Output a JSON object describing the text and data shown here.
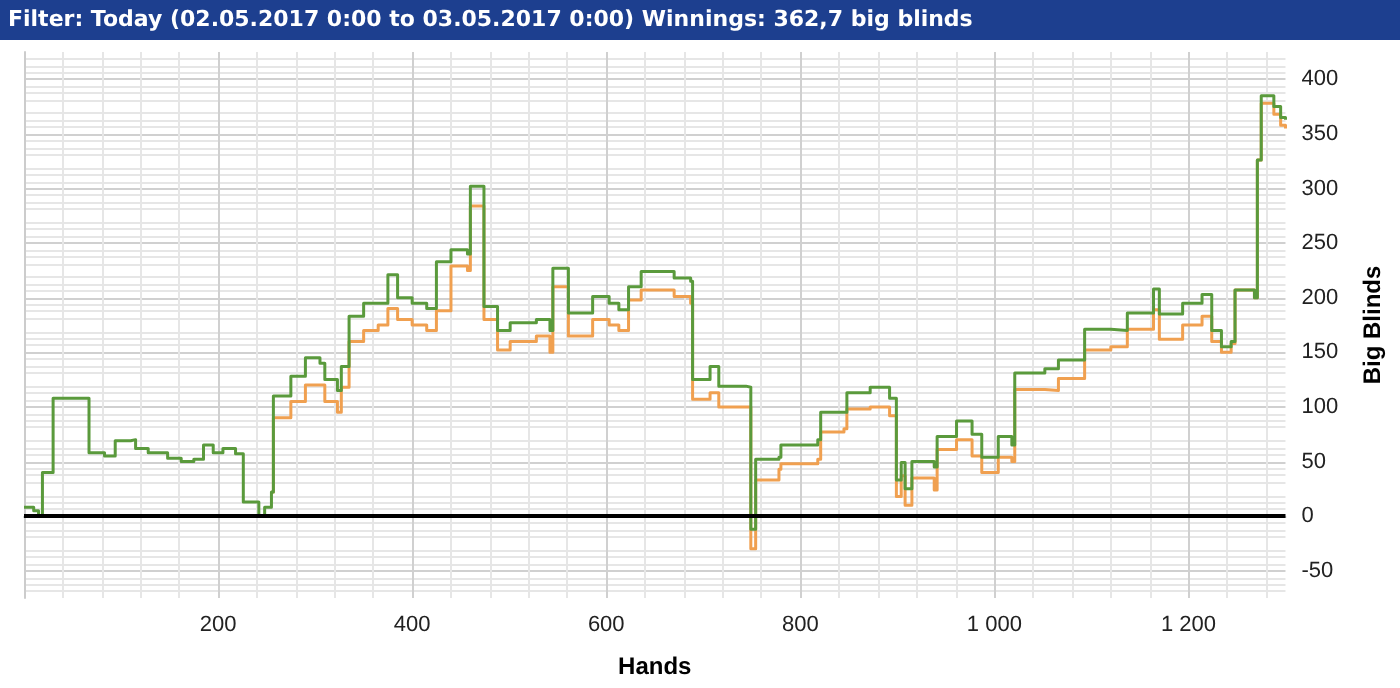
{
  "chart_data": {
    "type": "step",
    "title": "Filter: Today (02.05.2017 0:00 to 03.05.2017 0:00) Winnings: 362,7 big blinds",
    "xlabel": "Hands",
    "ylabel": "Big Blinds",
    "xlim": [
      0,
      1300
    ],
    "xticks": [
      200,
      400,
      600,
      800,
      {
        "value": 1000,
        "label": "1 000"
      },
      {
        "value": 1200,
        "label": "1 200"
      }
    ],
    "ylim": [
      -75,
      425
    ],
    "yticks": [
      -50,
      0,
      50,
      100,
      150,
      200,
      250,
      300,
      350,
      400
    ],
    "grid": true,
    "marker": "none",
    "ref_lines": [
      {
        "axis": "y",
        "value": 0,
        "color": "#000000"
      }
    ],
    "series": [
      {
        "color": "#f0a050",
        "x": [
          255,
          257,
          275,
          290,
          305,
          310,
          323,
          327,
          335,
          350,
          365,
          375,
          385,
          400,
          415,
          425,
          440,
          457,
          460,
          474,
          488,
          501,
          528,
          542,
          545,
          561,
          586,
          603,
          613,
          623,
          636,
          670,
          687,
          689,
          707,
          716,
          744,
          749,
          754,
          778,
          780,
          818,
          821,
          845,
          848,
          872,
          892,
          899,
          904,
          908,
          915,
          938,
          941,
          961,
          977,
          987,
          1004,
          1018,
          1021,
          1052,
          1066,
          1093,
          1120,
          1137,
          1164,
          1170,
          1194,
          1214,
          1224,
          1234,
          1244,
          1248,
          1268,
          1271,
          1275,
          1288,
          1295,
          1300
        ],
        "values": [
          22,
          90,
          105,
          120,
          120,
          105,
          95,
          118,
          160,
          170,
          175,
          190,
          180,
          175,
          170,
          188,
          229,
          225,
          284,
          180,
          152,
          160,
          165,
          150,
          210,
          165,
          180,
          175,
          170,
          198,
          207,
          201,
          195,
          107,
          113,
          100,
          100,
          -30,
          33,
          43,
          48,
          52,
          77,
          80,
          98,
          100,
          92,
          18,
          37,
          10,
          35,
          24,
          61,
          70,
          55,
          40,
          54,
          50,
          116,
          115,
          126,
          152,
          155,
          171,
          189,
          162,
          175,
          183,
          160,
          150,
          158,
          207,
          200,
          326,
          378,
          368,
          358,
          355
        ]
      },
      {
        "color": "#5a9a3c",
        "x": [
          0,
          10,
          15,
          19,
          30,
          67,
          83,
          94,
          110,
          115,
          128,
          148,
          162,
          175,
          185,
          195,
          205,
          218,
          226,
          242,
          248,
          255,
          257,
          275,
          290,
          305,
          310,
          323,
          327,
          335,
          350,
          365,
          375,
          385,
          400,
          415,
          425,
          440,
          457,
          460,
          474,
          488,
          501,
          528,
          542,
          545,
          561,
          586,
          603,
          613,
          623,
          636,
          670,
          687,
          689,
          707,
          716,
          744,
          749,
          754,
          778,
          780,
          818,
          821,
          845,
          848,
          872,
          892,
          899,
          904,
          908,
          915,
          938,
          941,
          961,
          977,
          987,
          1004,
          1018,
          1021,
          1052,
          1066,
          1093,
          1120,
          1137,
          1164,
          1170,
          1194,
          1214,
          1224,
          1234,
          1244,
          1248,
          1268,
          1271,
          1275,
          1288,
          1295,
          1300
        ],
        "values": [
          8,
          5,
          0,
          40,
          108,
          58,
          55,
          69,
          70,
          62,
          58,
          53,
          50,
          52,
          65,
          58,
          62,
          57,
          13,
          0,
          8,
          22,
          110,
          128,
          145,
          140,
          125,
          115,
          137,
          183,
          195,
          195,
          221,
          200,
          195,
          190,
          233,
          244,
          240,
          302,
          192,
          170,
          177,
          180,
          170,
          227,
          186,
          201,
          195,
          189,
          210,
          224,
          218,
          215,
          125,
          137,
          119,
          118,
          -12,
          52,
          54,
          65,
          70,
          95,
          95,
          113,
          118,
          108,
          33,
          49,
          25,
          50,
          45,
          73,
          87,
          75,
          54,
          73,
          65,
          131,
          135,
          143,
          171,
          170,
          186,
          208,
          185,
          195,
          203,
          170,
          155,
          160,
          207,
          200,
          326,
          385,
          375,
          365,
          363
        ]
      }
    ]
  }
}
